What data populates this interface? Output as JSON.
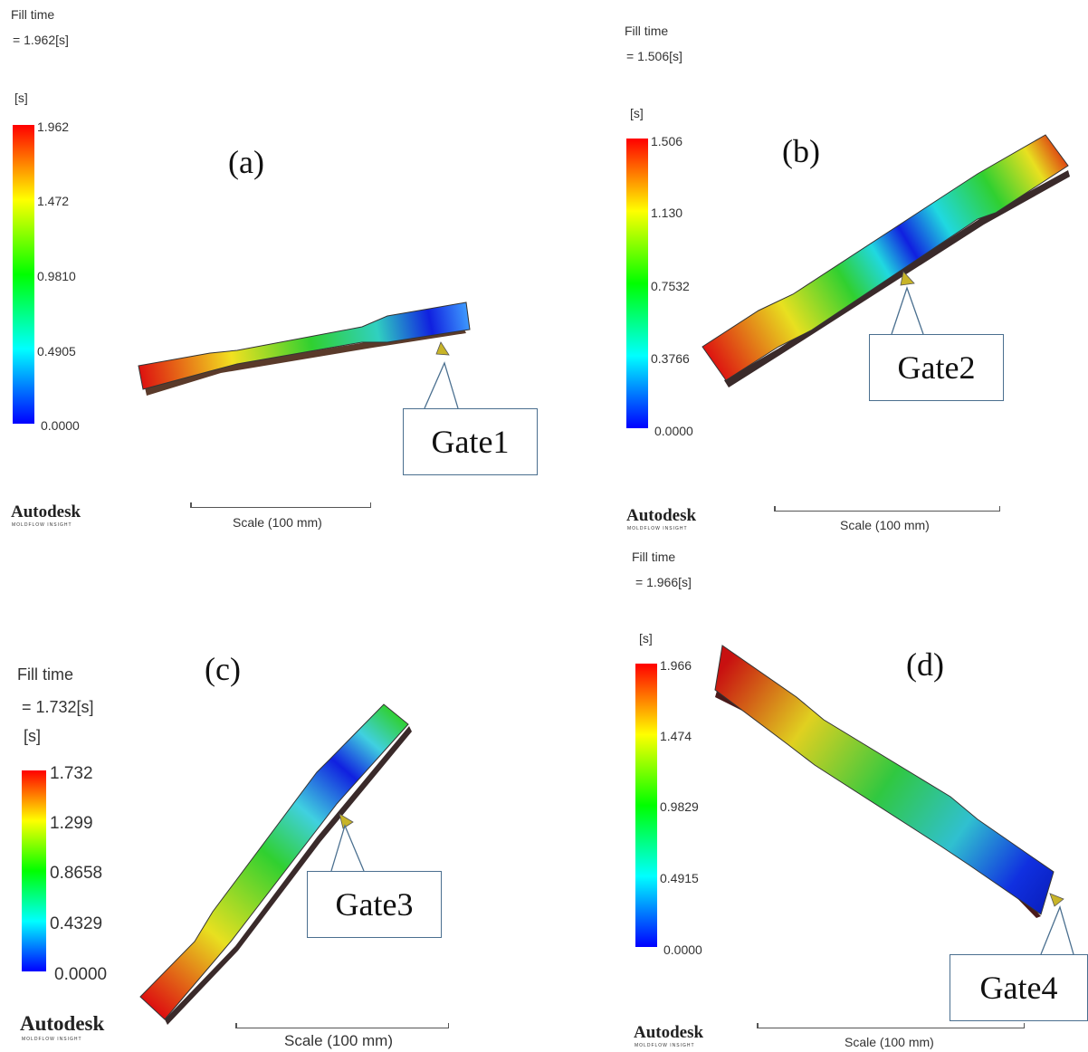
{
  "brand": "Autodesk",
  "brand_sub": "MOLDFLOW INSIGHT",
  "scale_label": "Scale (100 mm)",
  "unit": "[s]",
  "fill_time_label": "Fill time",
  "colormap": [
    "#ff0000",
    "#ffff00",
    "#00ff00",
    "#00ffff",
    "#0000ff"
  ],
  "panels": [
    {
      "id": "a",
      "letter": "(a)",
      "fill_time_value": "= 1.962[s]",
      "ticks": [
        "1.962",
        "1.472",
        "0.9810",
        "0.4905",
        "0.0000"
      ],
      "gate": "Gate1"
    },
    {
      "id": "b",
      "letter": "(b)",
      "fill_time_value": "= 1.506[s]",
      "ticks": [
        "1.506",
        "1.130",
        "0.7532",
        "0.3766",
        "0.0000"
      ],
      "gate": "Gate2"
    },
    {
      "id": "c",
      "letter": "(c)",
      "fill_time_value": "= 1.732[s]",
      "ticks": [
        "1.732",
        "1.299",
        "0.8658",
        "0.4329",
        "0.0000"
      ],
      "gate": "Gate3"
    },
    {
      "id": "d",
      "letter": "(d)",
      "fill_time_value": "= 1.966[s]",
      "ticks": [
        "1.966",
        "1.474",
        "0.9829",
        "0.4915",
        "0.0000"
      ],
      "gate": "Gate4"
    }
  ]
}
